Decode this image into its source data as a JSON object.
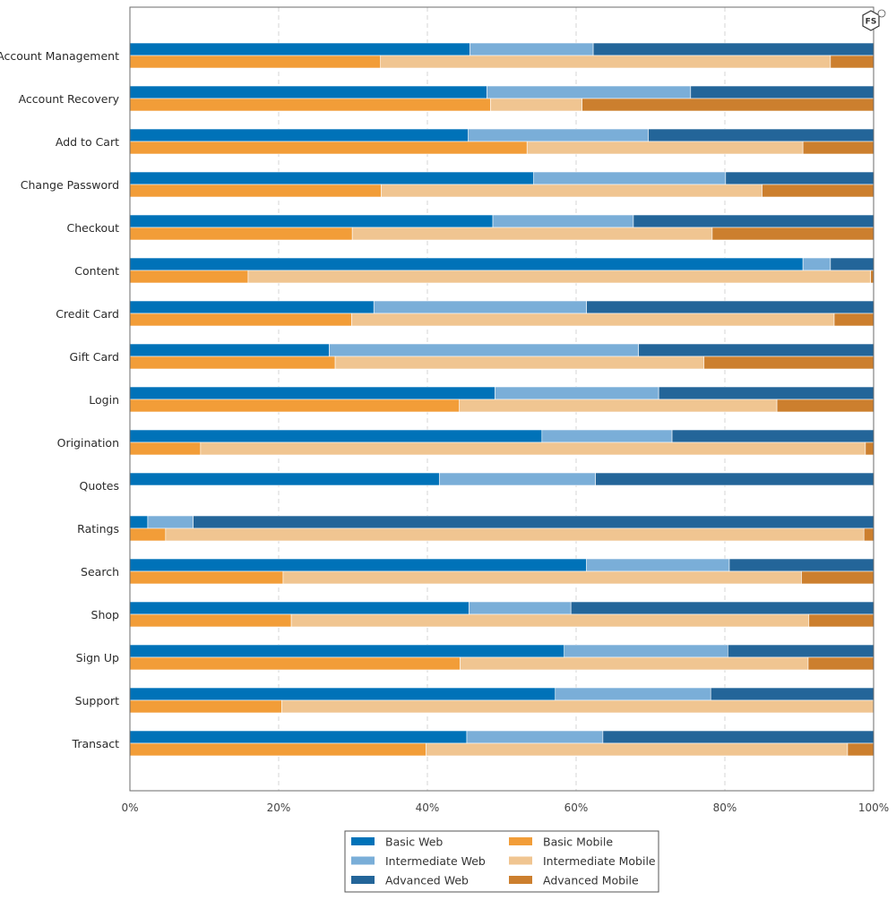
{
  "chart_data": {
    "type": "bar",
    "orientation": "horizontal-stacked-100",
    "xlabel": "",
    "ylabel": "",
    "xlim": [
      0,
      100
    ],
    "x_tick_labels": [
      "0%",
      "20%",
      "40%",
      "60%",
      "80%",
      "100%"
    ],
    "categories": [
      "Account Management",
      "Account Recovery",
      "Add to Cart",
      "Change Password",
      "Checkout",
      "Content",
      "Credit Card",
      "Gift Card",
      "Login",
      "Origination",
      "Quotes",
      "Ratings",
      "Search",
      "Shop",
      "Sign Up",
      "Support",
      "Transact"
    ],
    "groups": [
      {
        "name": "Web",
        "series": [
          {
            "name": "Basic Web",
            "color": "#0072b8",
            "values": [
              45.7,
              48.0,
              45.5,
              54.3,
              48.8,
              90.5,
              32.8,
              26.8,
              49.1,
              55.4,
              41.6,
              2.4,
              61.4,
              45.6,
              58.4,
              57.2,
              45.3
            ]
          },
          {
            "name": "Intermediate Web",
            "color": "#7aaed8",
            "values": [
              16.6,
              27.4,
              24.2,
              25.8,
              18.9,
              3.7,
              28.6,
              41.6,
              22.0,
              17.5,
              21.0,
              6.1,
              19.2,
              13.7,
              22.0,
              20.9,
              18.3
            ]
          },
          {
            "name": "Advanced Web",
            "color": "#236599",
            "values": [
              37.7,
              24.6,
              30.3,
              19.9,
              32.3,
              5.8,
              38.6,
              31.6,
              28.9,
              27.1,
              37.4,
              91.5,
              19.4,
              40.7,
              19.6,
              21.9,
              36.4
            ]
          }
        ]
      },
      {
        "name": "Mobile",
        "series": [
          {
            "name": "Basic Mobile",
            "color": "#f29d38",
            "values": [
              33.7,
              48.5,
              53.4,
              33.8,
              29.9,
              15.9,
              29.8,
              27.6,
              44.3,
              9.5,
              0,
              4.8,
              20.6,
              21.7,
              44.4,
              20.4,
              39.8
            ]
          },
          {
            "name": "Intermediate Mobile",
            "color": "#f0c591",
            "values": [
              60.5,
              12.3,
              37.1,
              51.2,
              48.4,
              83.7,
              64.9,
              49.6,
              42.7,
              89.4,
              0,
              93.9,
              69.7,
              69.6,
              46.8,
              79.6,
              56.7
            ]
          },
          {
            "name": "Advanced Mobile",
            "color": "#cc7f2e",
            "values": [
              5.8,
              39.2,
              9.5,
              15.0,
              21.7,
              0.4,
              5.3,
              22.8,
              13.0,
              1.1,
              0,
              1.3,
              9.7,
              8.7,
              8.8,
              0,
              3.5
            ]
          }
        ]
      }
    ],
    "legend": {
      "position": "bottom-center",
      "entries": [
        "Basic Web",
        "Intermediate Web",
        "Advanced Web",
        "Basic Mobile",
        "Intermediate Mobile",
        "Advanced Mobile"
      ]
    },
    "grid": true,
    "logo_text": "FS"
  }
}
